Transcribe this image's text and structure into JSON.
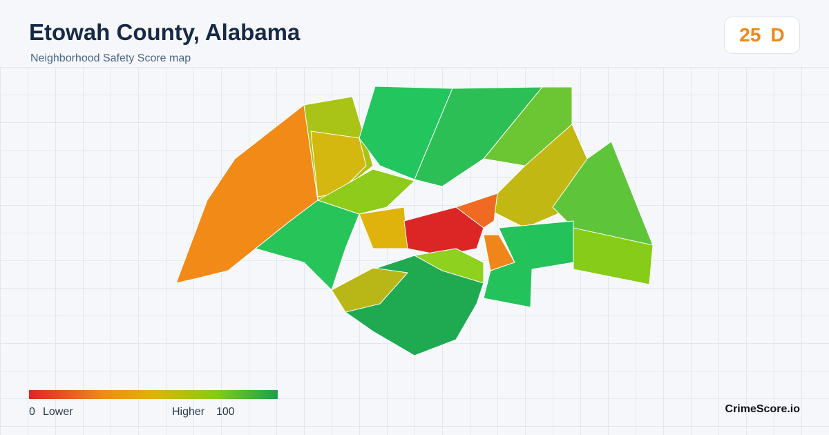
{
  "header": {
    "title": "Etowah County, Alabama",
    "subtitle": "Neighborhood Safety Score map"
  },
  "score": {
    "value": 25,
    "grade": "D"
  },
  "legend": {
    "min": 0,
    "min_label": "Lower",
    "max_label": "Higher",
    "max": 100
  },
  "brand": "CrimeScore.io"
}
